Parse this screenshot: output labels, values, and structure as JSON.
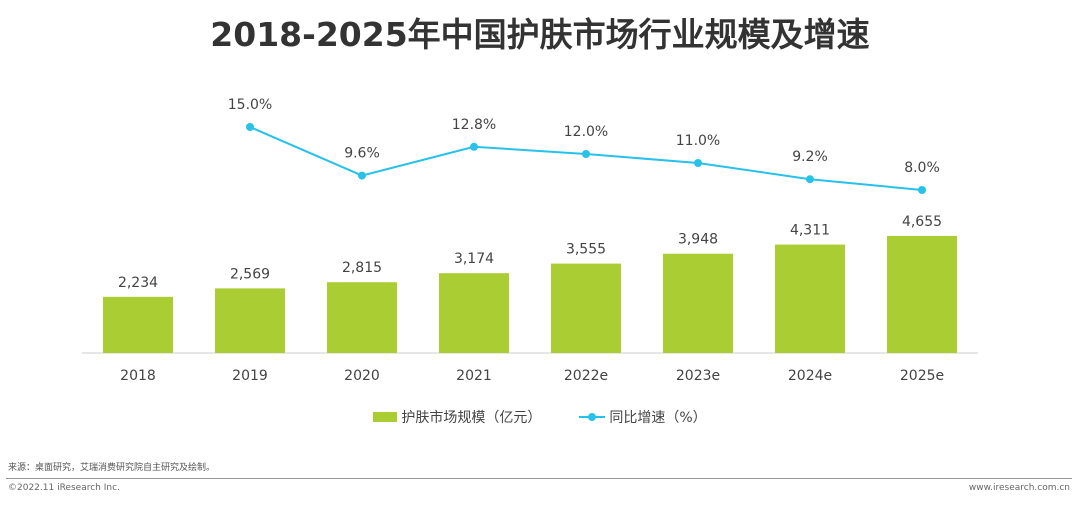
{
  "title": "2018-2025年中国护肤市场行业规模及增速",
  "chart_data": {
    "type": "bar+line",
    "title": "2018-2025年中国护肤市场行业规模及增速",
    "categories": [
      "2018",
      "2019",
      "2020",
      "2021",
      "2022e",
      "2023e",
      "2024e",
      "2025e"
    ],
    "series": [
      {
        "name": "护肤市场规模（亿元）",
        "type": "bar",
        "color": "#aacd33",
        "values": [
          2234,
          2569,
          2815,
          3174,
          3555,
          3948,
          4311,
          4655
        ],
        "labels": [
          "2,234",
          "2,569",
          "2,815",
          "3,174",
          "3,555",
          "3,948",
          "4,311",
          "4,655"
        ]
      },
      {
        "name": "同比增速（%）",
        "type": "line",
        "color": "#27c1ea",
        "values": [
          null,
          15.0,
          9.6,
          12.8,
          12.0,
          11.0,
          9.2,
          8.0
        ],
        "labels": [
          "",
          "15.0%",
          "9.6%",
          "12.8%",
          "12.0%",
          "11.0%",
          "9.2%",
          "8.0%"
        ]
      }
    ],
    "legend": "bottom",
    "grid": false
  },
  "footer": {
    "source": "来源：桌面研究，艾瑞消费研究院自主研究及绘制。",
    "copyright": "©2022.11 iResearch Inc.",
    "website": "www.iresearch.com.cn"
  }
}
